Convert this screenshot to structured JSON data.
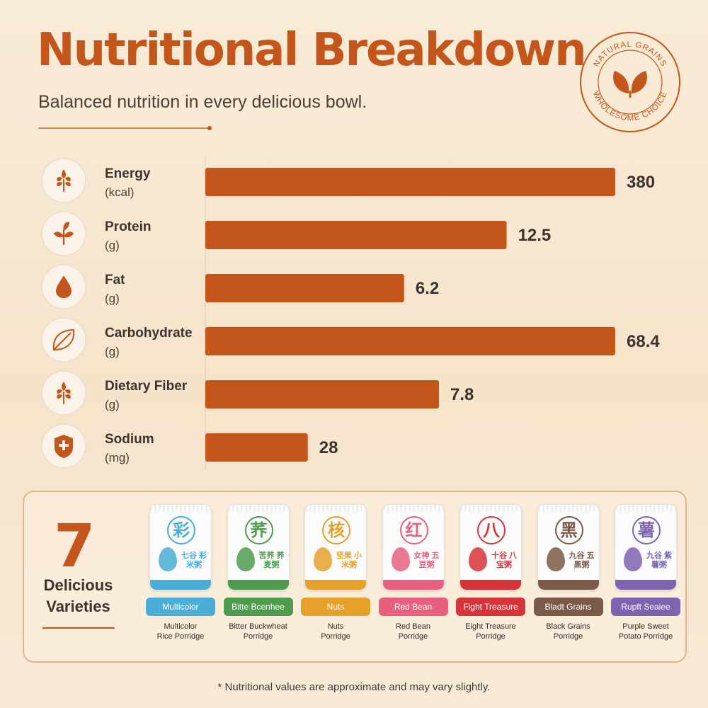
{
  "header": {
    "title": "Nutritional Breakdown",
    "subtitle": "Balanced nutrition in every delicious bowl."
  },
  "badge": {
    "top_text": "NATURAL GRAINS",
    "bottom_text": "WHOLESOME CHOICE",
    "icon": "leaves-icon",
    "color": "#c4561b"
  },
  "chart_data": {
    "type": "bar",
    "orientation": "horizontal",
    "categories": [
      "Energy",
      "Protein",
      "Fat",
      "Carbohydrate",
      "Dietary Fiber",
      "Sodium"
    ],
    "units": [
      "(kcal)",
      "(g)",
      "(g)",
      "(g)",
      "(g)",
      "(mg)"
    ],
    "values": [
      380,
      12.5,
      6.2,
      68.4,
      7.8,
      28
    ],
    "value_labels": [
      "380",
      "12.5",
      "6.2",
      "68.4",
      "7.8",
      "28"
    ],
    "relative_fill": [
      1.0,
      0.735,
      0.485,
      1.0,
      0.57,
      0.25
    ],
    "icons": [
      "wheat-icon",
      "sprout-icon",
      "drop-icon",
      "leaf-icon",
      "wheat-icon",
      "shield-plus-icon"
    ],
    "bar_color": "#c4561b",
    "title": "",
    "xlabel": "",
    "ylabel": ""
  },
  "varieties": {
    "count": "7",
    "label_line1": "Delicious",
    "label_line2": "Varieties",
    "items": [
      {
        "char": "彩",
        "pack_name": "七谷 彩米粥",
        "tag": "Multicolor",
        "caption1": "Multicolor",
        "caption2": "Rice Porridge",
        "color": "#4aaed6"
      },
      {
        "char": "荞",
        "pack_name": "苦荞 荞麦粥",
        "tag": "Bitte Bcenhee",
        "caption1": "Bitter Buckwheat",
        "caption2": "Porridge",
        "color": "#4e9b4e"
      },
      {
        "char": "核",
        "pack_name": "坚果 小米粥",
        "tag": "Nuts",
        "caption1": "Nuts",
        "caption2": "Porridge",
        "color": "#e5a12a"
      },
      {
        "char": "红",
        "pack_name": "女神 五豆粥",
        "tag": "Red Bean",
        "caption1": "Red Bean",
        "caption2": "Porridge",
        "color": "#e8607f"
      },
      {
        "char": "八",
        "pack_name": "十谷 八宝粥",
        "tag": "Fight Treasure",
        "caption1": "Eight Treasure",
        "caption2": "Porridge",
        "color": "#d7333a"
      },
      {
        "char": "黑",
        "pack_name": "九谷 五黑粥",
        "tag": "Bladt Grains",
        "caption1": "Black Grains",
        "caption2": "Porridge",
        "color": "#7b5a47"
      },
      {
        "char": "薯",
        "pack_name": "九谷 紫薯粥",
        "tag": "Rupft Seaiee",
        "caption1": "Purple Sweet",
        "caption2": "Potato Porridge",
        "color": "#7e63b0"
      }
    ]
  },
  "footnote": "* Nutritional values are approximate and may vary slightly."
}
